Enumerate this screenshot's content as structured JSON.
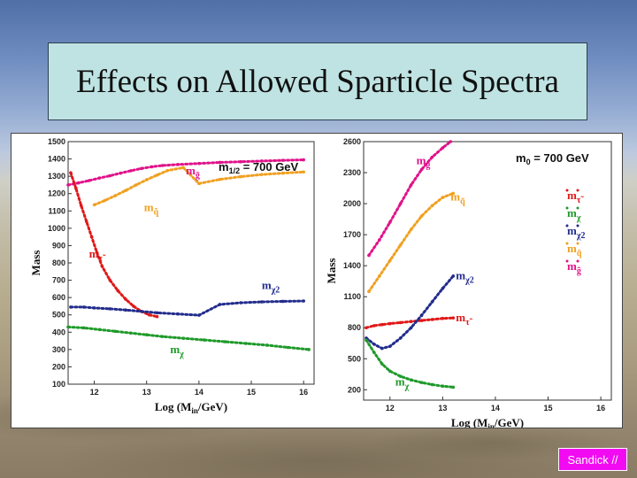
{
  "slide": {
    "title": "Effects on Allowed Sparticle Spectra",
    "footer": "Sandick //"
  },
  "colors": {
    "magenta": "#e0128a",
    "orange": "#f0a020",
    "red": "#e01818",
    "navy": "#222c8c",
    "green": "#1f9a2a",
    "footer_bg": "#f20af2",
    "title_bg": "#bfe3e3"
  },
  "chart_data": [
    {
      "type": "scatter",
      "title": "m1/2 = 700 GeV",
      "title_parts": {
        "main": "m",
        "sub": "1/2",
        "rest": " = 700 GeV"
      },
      "xlabel": "Log (Min/GeV)",
      "xlabel_parts": {
        "main": "Log (M",
        "sub": "in",
        "rest": "/GeV)"
      },
      "ylabel": "Mass",
      "xlim": [
        11.5,
        16.2
      ],
      "ylim": [
        100,
        1500
      ],
      "xticks": [
        "12",
        "13",
        "14",
        "15",
        "16"
      ],
      "yticks": [
        "1500",
        "1400",
        "1300",
        "1200",
        "1100",
        "1000",
        "900",
        "800",
        "700",
        "600",
        "500",
        "400",
        "300",
        "200",
        "100"
      ],
      "grid": false,
      "series": [
        {
          "label": "mg~",
          "color": "magenta",
          "x": [
            11.5,
            11.7,
            11.9,
            12.1,
            12.3,
            12.5,
            12.7,
            12.9,
            13.1,
            13.3,
            13.6,
            14.0,
            14.4,
            14.8,
            15.2,
            15.6,
            16.0
          ],
          "y": [
            1250,
            1262,
            1275,
            1290,
            1303,
            1318,
            1332,
            1345,
            1355,
            1362,
            1368,
            1374,
            1380,
            1384,
            1388,
            1392,
            1395
          ]
        },
        {
          "label": "mq~",
          "color": "orange",
          "x": [
            12.0,
            12.2,
            12.4,
            12.6,
            12.8,
            13.0,
            13.2,
            13.4,
            13.7,
            14.0,
            14.4,
            14.8,
            15.2,
            15.6,
            16.0
          ],
          "y": [
            1135,
            1160,
            1188,
            1218,
            1250,
            1280,
            1307,
            1333,
            1350,
            1258,
            1282,
            1298,
            1310,
            1318,
            1325
          ]
        },
        {
          "label": "mτ~",
          "color": "red",
          "x": [
            11.55,
            11.65,
            11.75,
            11.85,
            11.95,
            12.05,
            12.15,
            12.3,
            12.45,
            12.6,
            12.75,
            12.9,
            13.05,
            13.2
          ],
          "y": [
            1320,
            1230,
            1130,
            1040,
            950,
            860,
            780,
            700,
            640,
            590,
            550,
            520,
            500,
            490
          ]
        },
        {
          "label": "mχ2",
          "color": "navy",
          "x": [
            11.55,
            11.8,
            12.0,
            12.3,
            12.6,
            12.9,
            13.2,
            13.6,
            14.0,
            14.4,
            14.8,
            15.2,
            15.6,
            16.0
          ],
          "y": [
            545,
            545,
            540,
            535,
            528,
            520,
            512,
            505,
            498,
            560,
            570,
            575,
            578,
            580
          ]
        },
        {
          "label": "mχ",
          "color": "green",
          "x": [
            11.5,
            11.8,
            12.1,
            12.4,
            12.7,
            13.0,
            13.3,
            13.7,
            14.1,
            14.5,
            14.9,
            15.3,
            15.7,
            16.1
          ],
          "y": [
            430,
            425,
            415,
            405,
            395,
            385,
            375,
            365,
            355,
            345,
            335,
            325,
            312,
            300
          ]
        }
      ]
    },
    {
      "type": "scatter",
      "title": "m0 = 700 GeV",
      "title_parts": {
        "main": "m",
        "sub": "0",
        "rest": " = 700 GeV"
      },
      "xlabel": "Log (Min/GeV)",
      "xlabel_parts": {
        "main": "Log (M",
        "sub": "in",
        "rest": "/GeV)"
      },
      "ylabel": "Mass",
      "xlim": [
        11.5,
        16.2
      ],
      "ylim": [
        100,
        2600
      ],
      "xticks": [
        "12",
        "13",
        "14",
        "15",
        "16"
      ],
      "yticks": [
        "2600",
        "2300",
        "2000",
        "1700",
        "1400",
        "1100",
        "800",
        "500",
        "200"
      ],
      "grid": false,
      "legend": [
        "mτ~",
        "mχ",
        "mχ2",
        "mq~",
        "mg~"
      ],
      "legend_position": "right",
      "series": [
        {
          "label": "mg~",
          "color": "magenta",
          "x": [
            11.6,
            11.8,
            12.0,
            12.2,
            12.4,
            12.6,
            12.8,
            13.0,
            13.15
          ],
          "y": [
            1500,
            1650,
            1820,
            2000,
            2180,
            2330,
            2450,
            2540,
            2600
          ]
        },
        {
          "label": "mq~",
          "color": "orange",
          "x": [
            11.6,
            11.8,
            12.0,
            12.2,
            12.4,
            12.6,
            12.8,
            13.0,
            13.2
          ],
          "y": [
            1150,
            1300,
            1450,
            1600,
            1750,
            1880,
            1980,
            2060,
            2100
          ]
        },
        {
          "label": "mτ~",
          "color": "red",
          "x": [
            11.55,
            11.7,
            11.85,
            12.0,
            12.2,
            12.4,
            12.6,
            12.8,
            13.0,
            13.2
          ],
          "y": [
            800,
            820,
            830,
            840,
            850,
            860,
            870,
            880,
            890,
            895
          ]
        },
        {
          "label": "mχ2",
          "color": "navy",
          "x": [
            11.55,
            11.7,
            11.85,
            12.0,
            12.2,
            12.4,
            12.6,
            12.8,
            13.0,
            13.2
          ],
          "y": [
            700,
            640,
            600,
            620,
            700,
            800,
            920,
            1050,
            1180,
            1300
          ]
        },
        {
          "label": "mχ",
          "color": "green",
          "x": [
            11.55,
            11.7,
            11.85,
            12.0,
            12.2,
            12.4,
            12.6,
            12.8,
            13.0,
            13.2
          ],
          "y": [
            680,
            560,
            450,
            380,
            330,
            295,
            270,
            250,
            235,
            225
          ]
        }
      ]
    }
  ]
}
